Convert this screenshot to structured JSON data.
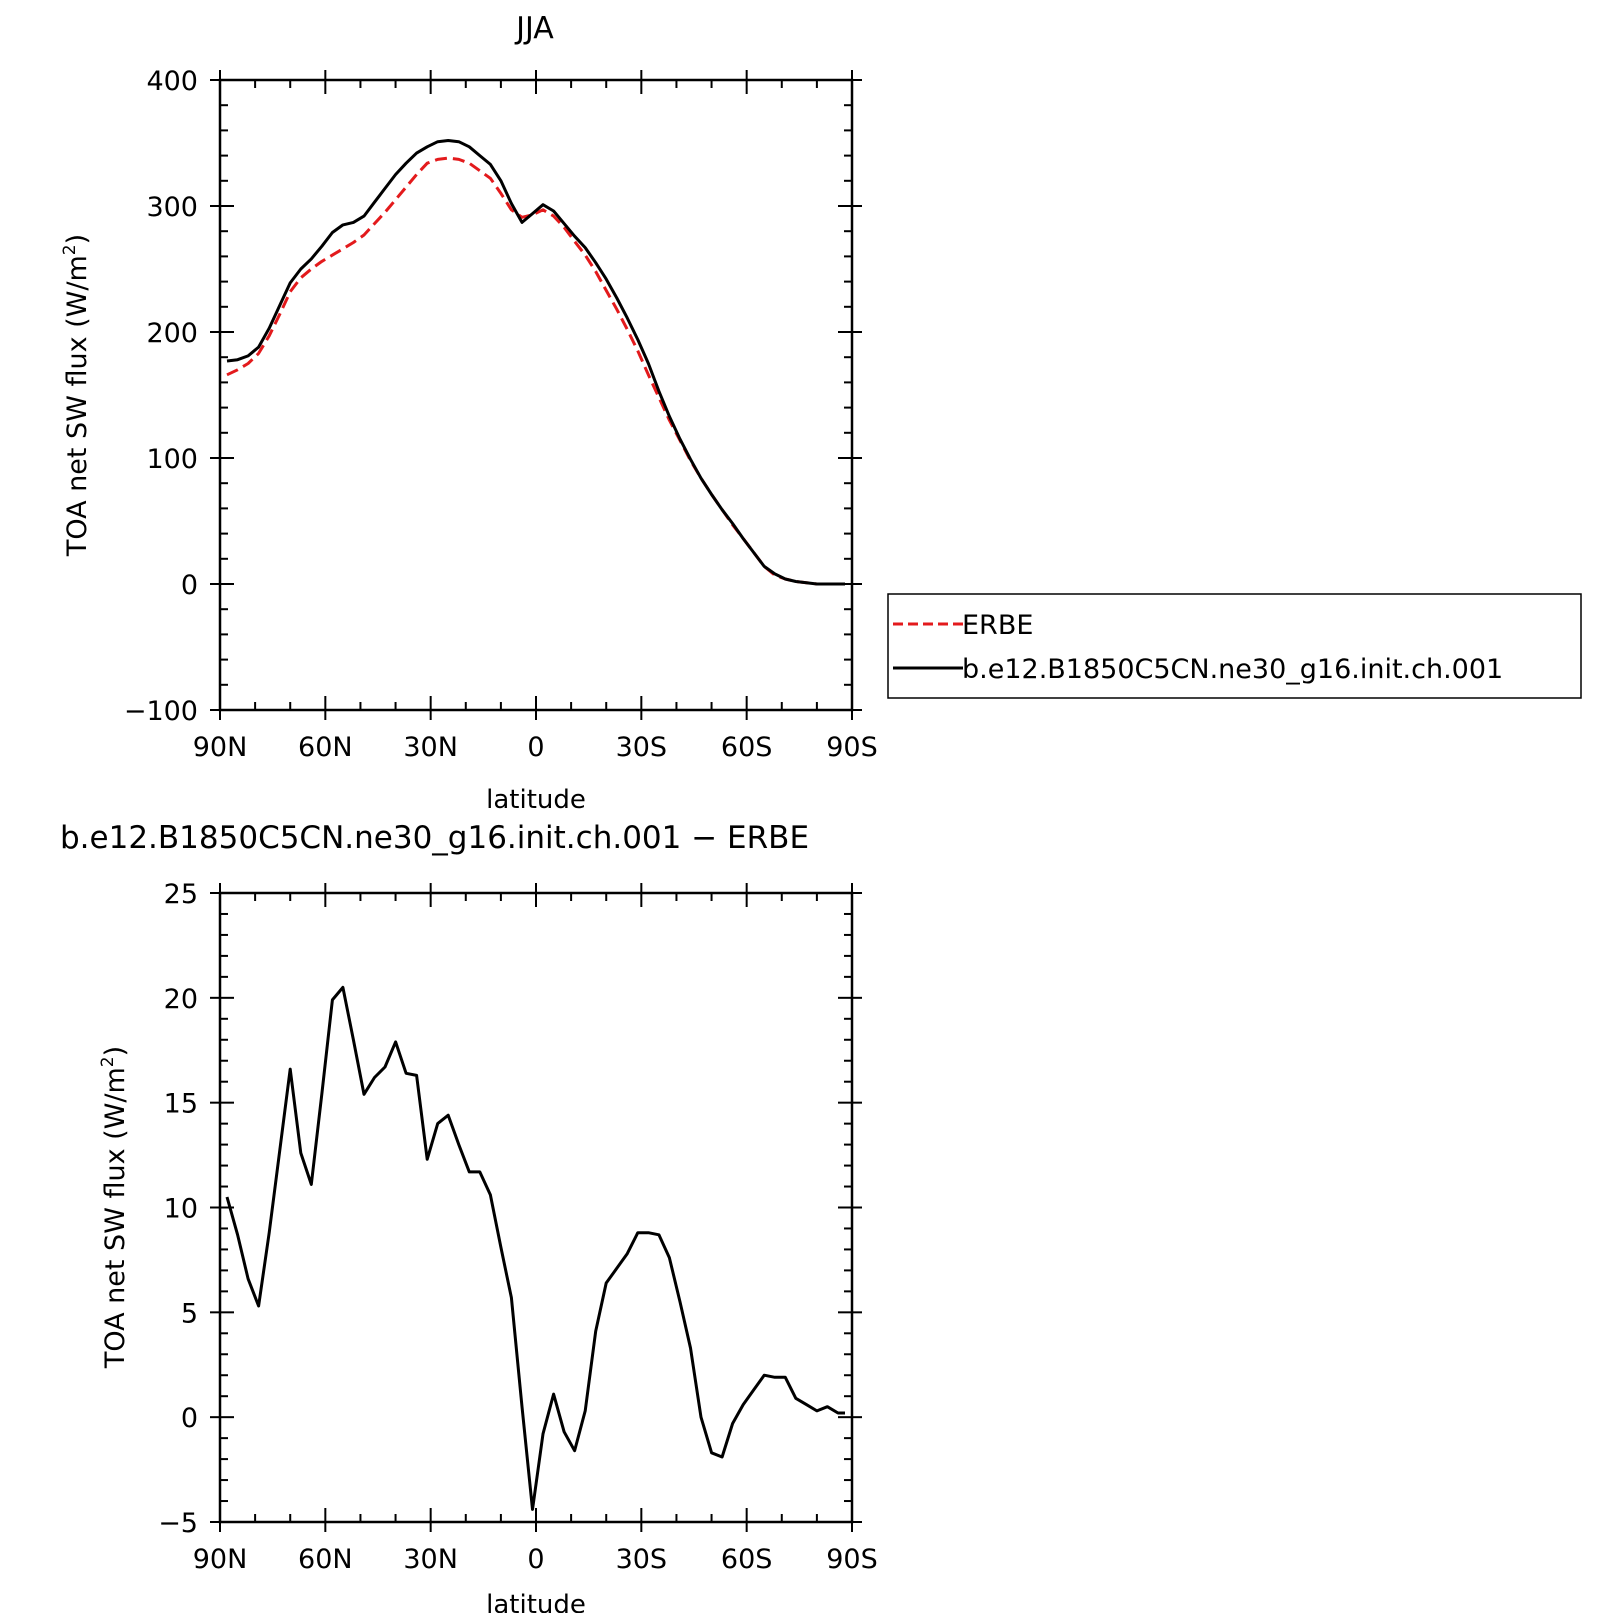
{
  "chart_data": [
    {
      "type": "line",
      "title": "JJA",
      "xlabel": "latitude",
      "ylabel": "TOA net SW flux (W/m²)",
      "ylabel_parts": {
        "main": "TOA net SW flux (W/m",
        "sup": "2",
        "close": ")"
      },
      "xlim": [
        90,
        -90
      ],
      "ylim": [
        -100,
        400
      ],
      "x_ticks": [
        90,
        60,
        30,
        0,
        -30,
        -60,
        -90
      ],
      "x_tick_labels": [
        "90N",
        "60N",
        "30N",
        "0",
        "30S",
        "60S",
        "90S"
      ],
      "y_ticks": [
        -100,
        0,
        100,
        200,
        300,
        400
      ],
      "y_tick_labels": [
        "−100",
        "0",
        "100",
        "200",
        "300",
        "400"
      ],
      "legend": {
        "placement": "right",
        "entries": [
          {
            "label": "ERBE",
            "series": 0
          },
          {
            "label": "b.e12.B1850C5CN.ne30_g16.init.ch.001",
            "series": 1
          }
        ]
      },
      "x": [
        88,
        85,
        82,
        79,
        76,
        73,
        70,
        67,
        64,
        61,
        58,
        55,
        52,
        49,
        46,
        43,
        40,
        37,
        34,
        31,
        28,
        25,
        22,
        19,
        16,
        13,
        10,
        7,
        4,
        1,
        -2,
        -5,
        -8,
        -11,
        -14,
        -17,
        -20,
        -23,
        -26,
        -29,
        -32,
        -35,
        -38,
        -41,
        -44,
        -47,
        -50,
        -53,
        -56,
        -59,
        -62,
        -65,
        -68,
        -71,
        -74,
        -77,
        -80,
        -83,
        -86,
        -88
      ],
      "series": [
        {
          "name": "ERBE",
          "color": "#e31a1c",
          "dash": "dashed",
          "values": [
            166,
            170,
            175,
            183,
            197,
            214,
            232,
            243,
            250,
            256,
            261,
            266,
            271,
            277,
            286,
            295,
            305,
            315,
            325,
            334,
            337,
            338,
            337,
            334,
            328,
            322,
            310,
            297,
            291,
            293,
            297,
            292,
            283,
            272,
            261,
            248,
            233,
            218,
            202,
            185,
            166,
            148,
            130,
            114,
            98,
            84,
            71,
            59,
            47,
            36,
            25,
            14,
            7,
            4,
            2,
            1,
            0,
            0,
            0,
            0
          ]
        },
        {
          "name": "b.e12.B1850C5CN.ne30_g16.init.ch.001",
          "color": "#000000",
          "dash": "solid",
          "values": [
            177,
            178,
            181,
            188,
            203,
            221,
            239,
            250,
            258,
            268,
            279,
            285,
            287,
            292,
            303,
            314,
            325,
            334,
            342,
            347,
            351,
            352,
            351,
            347,
            340,
            333,
            320,
            302,
            287,
            294,
            301,
            296,
            286,
            276,
            267,
            255,
            242,
            227,
            211,
            194,
            175,
            153,
            133,
            115,
            99,
            84,
            71,
            59,
            48,
            36,
            25,
            14,
            8,
            4,
            2,
            1,
            0,
            0,
            0,
            0
          ]
        }
      ]
    },
    {
      "type": "line",
      "title": "b.e12.B1850C5CN.ne30_g16.init.ch.001 − ERBE",
      "xlabel": "latitude",
      "ylabel": "TOA net SW flux (W/m²)",
      "ylabel_parts": {
        "main": "TOA net SW flux (W/m",
        "sup": "2",
        "close": ")"
      },
      "xlim": [
        90,
        -90
      ],
      "ylim": [
        -5,
        25
      ],
      "x_ticks": [
        90,
        60,
        30,
        0,
        -30,
        -60,
        -90
      ],
      "x_tick_labels": [
        "90N",
        "60N",
        "30N",
        "0",
        "30S",
        "60S",
        "90S"
      ],
      "y_ticks": [
        -5,
        0,
        5,
        10,
        15,
        20,
        25
      ],
      "y_tick_labels": [
        "−5",
        "0",
        "5",
        "10",
        "15",
        "20",
        "25"
      ],
      "x": [
        88,
        85,
        82,
        79,
        76,
        73,
        70,
        67,
        64,
        61,
        58,
        55,
        52,
        49,
        46,
        43,
        40,
        37,
        34,
        31,
        28,
        25,
        22,
        19,
        16,
        13,
        10,
        7,
        4,
        1,
        -2,
        -5,
        -8,
        -11,
        -14,
        -17,
        -20,
        -23,
        -26,
        -29,
        -32,
        -35,
        -38,
        -41,
        -44,
        -47,
        -50,
        -53,
        -56,
        -59,
        -62,
        -65,
        -68,
        -71,
        -74,
        -77,
        -80,
        -83,
        -86,
        -88
      ],
      "series": [
        {
          "color": "#000000",
          "dash": "solid",
          "values": [
            10.5,
            8.7,
            6.6,
            5.3,
            8.8,
            12.7,
            16.6,
            12.6,
            11.1,
            15.4,
            19.9,
            20.5,
            18.0,
            15.4,
            16.2,
            16.7,
            17.9,
            16.4,
            16.3,
            12.3,
            14.0,
            14.4,
            13.0,
            11.7,
            11.7,
            10.6,
            8.1,
            5.7,
            0.5,
            -4.4,
            -0.8,
            1.1,
            -0.7,
            -1.6,
            0.3,
            4.1,
            6.4,
            7.1,
            7.8,
            8.8,
            8.8,
            8.7,
            7.6,
            5.5,
            3.3,
            0.0,
            -1.7,
            -1.9,
            -0.3,
            0.6,
            1.3,
            2.0,
            1.9,
            1.9,
            0.9,
            0.6,
            0.3,
            0.5,
            0.2,
            0.2
          ]
        }
      ]
    }
  ]
}
